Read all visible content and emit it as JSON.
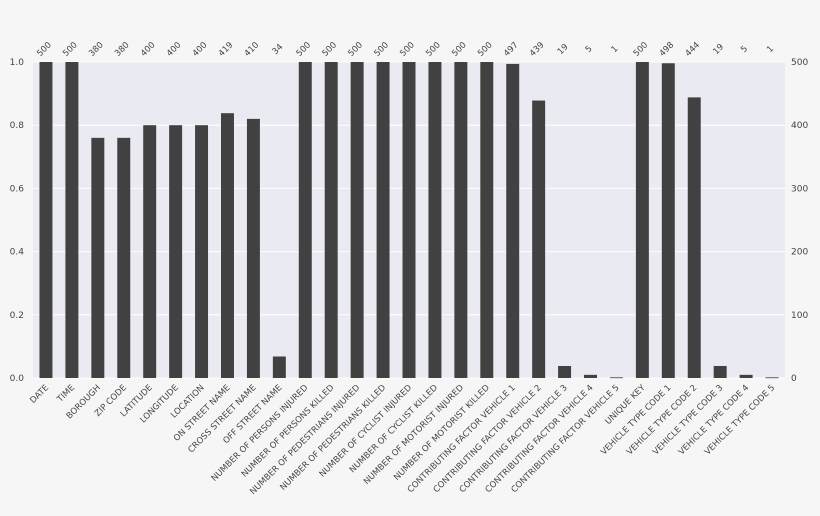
{
  "chart_data": {
    "type": "bar",
    "title": "",
    "xlabel": "",
    "ylabel": "",
    "ylim": [
      0,
      1.0
    ],
    "ylim_right": [
      0,
      500
    ],
    "total": 500,
    "y_ticks": [
      "0.0",
      "0.2",
      "0.4",
      "0.6",
      "0.8",
      "1.0"
    ],
    "y_right_ticks": [
      "0",
      "100",
      "200",
      "300",
      "400",
      "500"
    ],
    "grid": true,
    "colors": {
      "bar": "#414141",
      "plot_bg": "#eaeaf2",
      "grid": "#ffffff",
      "page_bg": "#f6f6f6"
    },
    "categories": [
      "DATE",
      "TIME",
      "BOROUGH",
      "ZIP CODE",
      "LATITUDE",
      "LONGITUDE",
      "LOCATION",
      "ON STREET NAME",
      "CROSS STREET NAME",
      "OFF STREET NAME",
      "NUMBER OF PERSONS INJURED",
      "NUMBER OF PERSONS KILLED",
      "NUMBER OF PEDESTRIANS INJURED",
      "NUMBER OF PEDESTRIANS KILLED",
      "NUMBER OF CYCLIST INJURED",
      "NUMBER OF CYCLIST KILLED",
      "NUMBER OF MOTORIST INJURED",
      "NUMBER OF MOTORIST KILLED",
      "CONTRIBUTING FACTOR VEHICLE 1",
      "CONTRIBUTING FACTOR VEHICLE 2",
      "CONTRIBUTING FACTOR VEHICLE 3",
      "CONTRIBUTING FACTOR VEHICLE 4",
      "CONTRIBUTING FACTOR VEHICLE 5",
      "UNIQUE KEY",
      "VEHICLE TYPE CODE 1",
      "VEHICLE TYPE CODE 2",
      "VEHICLE TYPE CODE 3",
      "VEHICLE TYPE CODE 4",
      "VEHICLE TYPE CODE 5"
    ],
    "counts": [
      500,
      500,
      380,
      380,
      400,
      400,
      400,
      419,
      410,
      34,
      500,
      500,
      500,
      500,
      500,
      500,
      500,
      500,
      497,
      439,
      19,
      5,
      1,
      500,
      498,
      444,
      19,
      5,
      1
    ],
    "values": [
      1.0,
      1.0,
      0.76,
      0.76,
      0.8,
      0.8,
      0.8,
      0.838,
      0.82,
      0.068,
      1.0,
      1.0,
      1.0,
      1.0,
      1.0,
      1.0,
      1.0,
      1.0,
      0.994,
      0.878,
      0.038,
      0.01,
      0.002,
      1.0,
      0.996,
      0.888,
      0.038,
      0.01,
      0.002
    ]
  }
}
